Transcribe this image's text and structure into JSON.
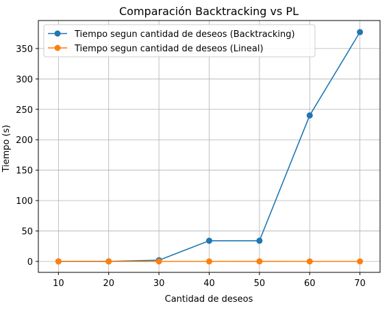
{
  "chart_data": {
    "type": "line",
    "title": "Comparación Backtracking vs PL",
    "xlabel": "Cantidad de deseos",
    "ylabel": "Tiempo (s)",
    "x": [
      10,
      20,
      30,
      40,
      50,
      60,
      70
    ],
    "xticks": [
      "10",
      "20",
      "30",
      "40",
      "50",
      "60",
      "70"
    ],
    "yticks": [
      "0",
      "50",
      "100",
      "150",
      "200",
      "250",
      "300",
      "350"
    ],
    "xlim": [
      6,
      74
    ],
    "ylim": [
      -18,
      396
    ],
    "grid": true,
    "legend_position": "upper-left",
    "series": [
      {
        "name": "Tiempo segun cantidad de deseos (Backtracking)",
        "color": "#1f77b4",
        "marker": "circle",
        "values": [
          0.0,
          0.1,
          2.0,
          34.0,
          34.0,
          240.0,
          377.0
        ]
      },
      {
        "name": "Tiempo segun cantidad de deseos (Lineal)",
        "color": "#ff7f0e",
        "marker": "circle",
        "values": [
          0.0,
          0.0,
          0.0,
          0.0,
          0.1,
          0.0,
          0.0
        ]
      }
    ]
  }
}
